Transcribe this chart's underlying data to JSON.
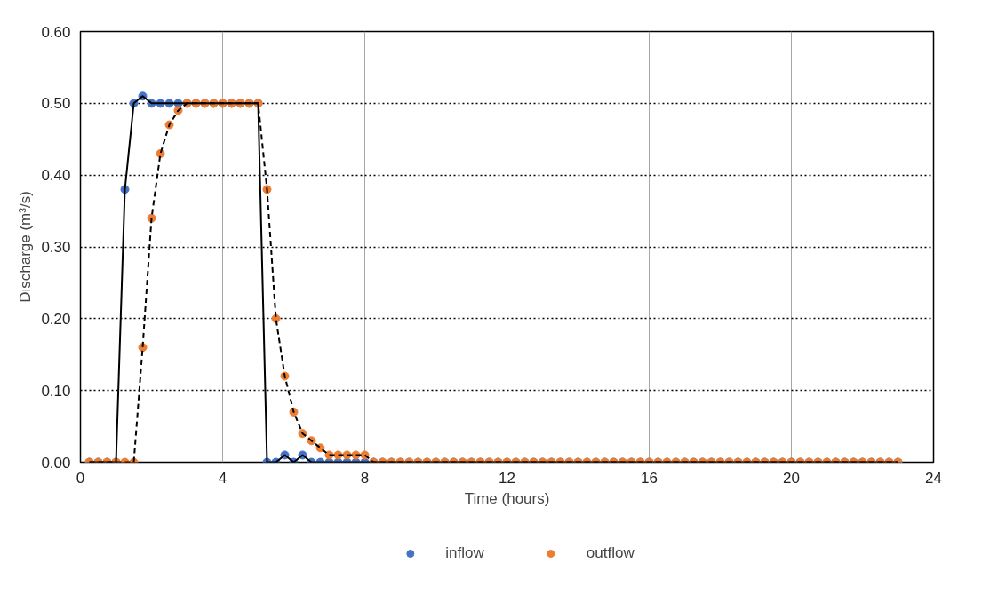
{
  "chart_data": {
    "type": "line",
    "xlabel": "Time (hours)",
    "ylabel": "Discharge (m³/s)",
    "x": [
      0.25,
      0.5,
      0.75,
      1.0,
      1.25,
      1.5,
      1.75,
      2.0,
      2.25,
      2.5,
      2.75,
      3.0,
      3.25,
      3.5,
      3.75,
      4.0,
      4.25,
      4.5,
      4.75,
      5.0,
      5.25,
      5.5,
      5.75,
      6.0,
      6.25,
      6.5,
      6.75,
      7.0,
      7.25,
      7.5,
      7.75,
      8.0,
      8.25,
      8.5,
      8.75,
      9.0,
      9.25,
      9.5,
      9.75,
      10.0,
      10.25,
      10.5,
      10.75,
      11.0,
      11.25,
      11.5,
      11.75,
      12.0,
      12.25,
      12.5,
      12.75,
      13.0,
      13.25,
      13.5,
      13.75,
      14.0,
      14.25,
      14.5,
      14.75,
      15.0,
      15.25,
      15.5,
      15.75,
      16.0,
      16.25,
      16.5,
      16.75,
      17.0,
      17.25,
      17.5,
      17.75,
      18.0,
      18.25,
      18.5,
      18.75,
      19.0,
      19.25,
      19.5,
      19.75,
      20.0,
      20.25,
      20.5,
      20.75,
      21.0,
      21.25,
      21.5,
      21.75,
      22.0,
      22.25,
      22.5,
      22.75,
      23.0
    ],
    "series": [
      {
        "name": "inflow",
        "color": "#4472c4",
        "line_style": "solid",
        "values": [
          0,
          0,
          0,
          0,
          0.38,
          0.5,
          0.51,
          0.5,
          0.5,
          0.5,
          0.5,
          0.5,
          0.5,
          0.5,
          0.5,
          0.5,
          0.5,
          0.5,
          0.5,
          0.5,
          0,
          0,
          0.01,
          0,
          0.01,
          0,
          0,
          0,
          0,
          0,
          0,
          0,
          0,
          0,
          0,
          0,
          0,
          0,
          0,
          0,
          0,
          0,
          0,
          0,
          0,
          0,
          0,
          0,
          0,
          0,
          0,
          0,
          0,
          0,
          0,
          0,
          0,
          0,
          0,
          0,
          0,
          0,
          0,
          0,
          0,
          0,
          0,
          0,
          0,
          0,
          0,
          0,
          0,
          0,
          0,
          0,
          0,
          0,
          0,
          0,
          0,
          0,
          0,
          0,
          0,
          0,
          0,
          0,
          0,
          0,
          0,
          0
        ]
      },
      {
        "name": "outflow",
        "color": "#ed7d31",
        "line_style": "dashed",
        "values": [
          0,
          0,
          0,
          0,
          0,
          0,
          0.16,
          0.34,
          0.43,
          0.47,
          0.49,
          0.5,
          0.5,
          0.5,
          0.5,
          0.5,
          0.5,
          0.5,
          0.5,
          0.5,
          0.38,
          0.2,
          0.12,
          0.07,
          0.04,
          0.03,
          0.02,
          0.01,
          0.01,
          0.01,
          0.01,
          0.01,
          0,
          0,
          0,
          0,
          0,
          0,
          0,
          0,
          0,
          0,
          0,
          0,
          0,
          0,
          0,
          0,
          0,
          0,
          0,
          0,
          0,
          0,
          0,
          0,
          0,
          0,
          0,
          0,
          0,
          0,
          0,
          0,
          0,
          0,
          0,
          0,
          0,
          0,
          0,
          0,
          0,
          0,
          0,
          0,
          0,
          0,
          0,
          0,
          0,
          0,
          0,
          0,
          0,
          0,
          0,
          0,
          0,
          0,
          0,
          0
        ]
      }
    ],
    "xlim": [
      0,
      24
    ],
    "xticks": [
      0,
      4,
      8,
      12,
      16,
      20,
      24
    ],
    "ylim": [
      0,
      0.6
    ],
    "yticks": [
      {
        "value": 0,
        "label": "0.00"
      },
      {
        "value": 0.1,
        "label": "0.10"
      },
      {
        "value": 0.2,
        "label": "0.20"
      },
      {
        "value": 0.3,
        "label": "0.30"
      },
      {
        "value": 0.4,
        "label": "0.40"
      },
      {
        "value": 0.5,
        "label": "0.50"
      },
      {
        "value": 0.6,
        "label": "0.60"
      }
    ],
    "grid": true,
    "legend": "bottom",
    "marker": "circle"
  }
}
